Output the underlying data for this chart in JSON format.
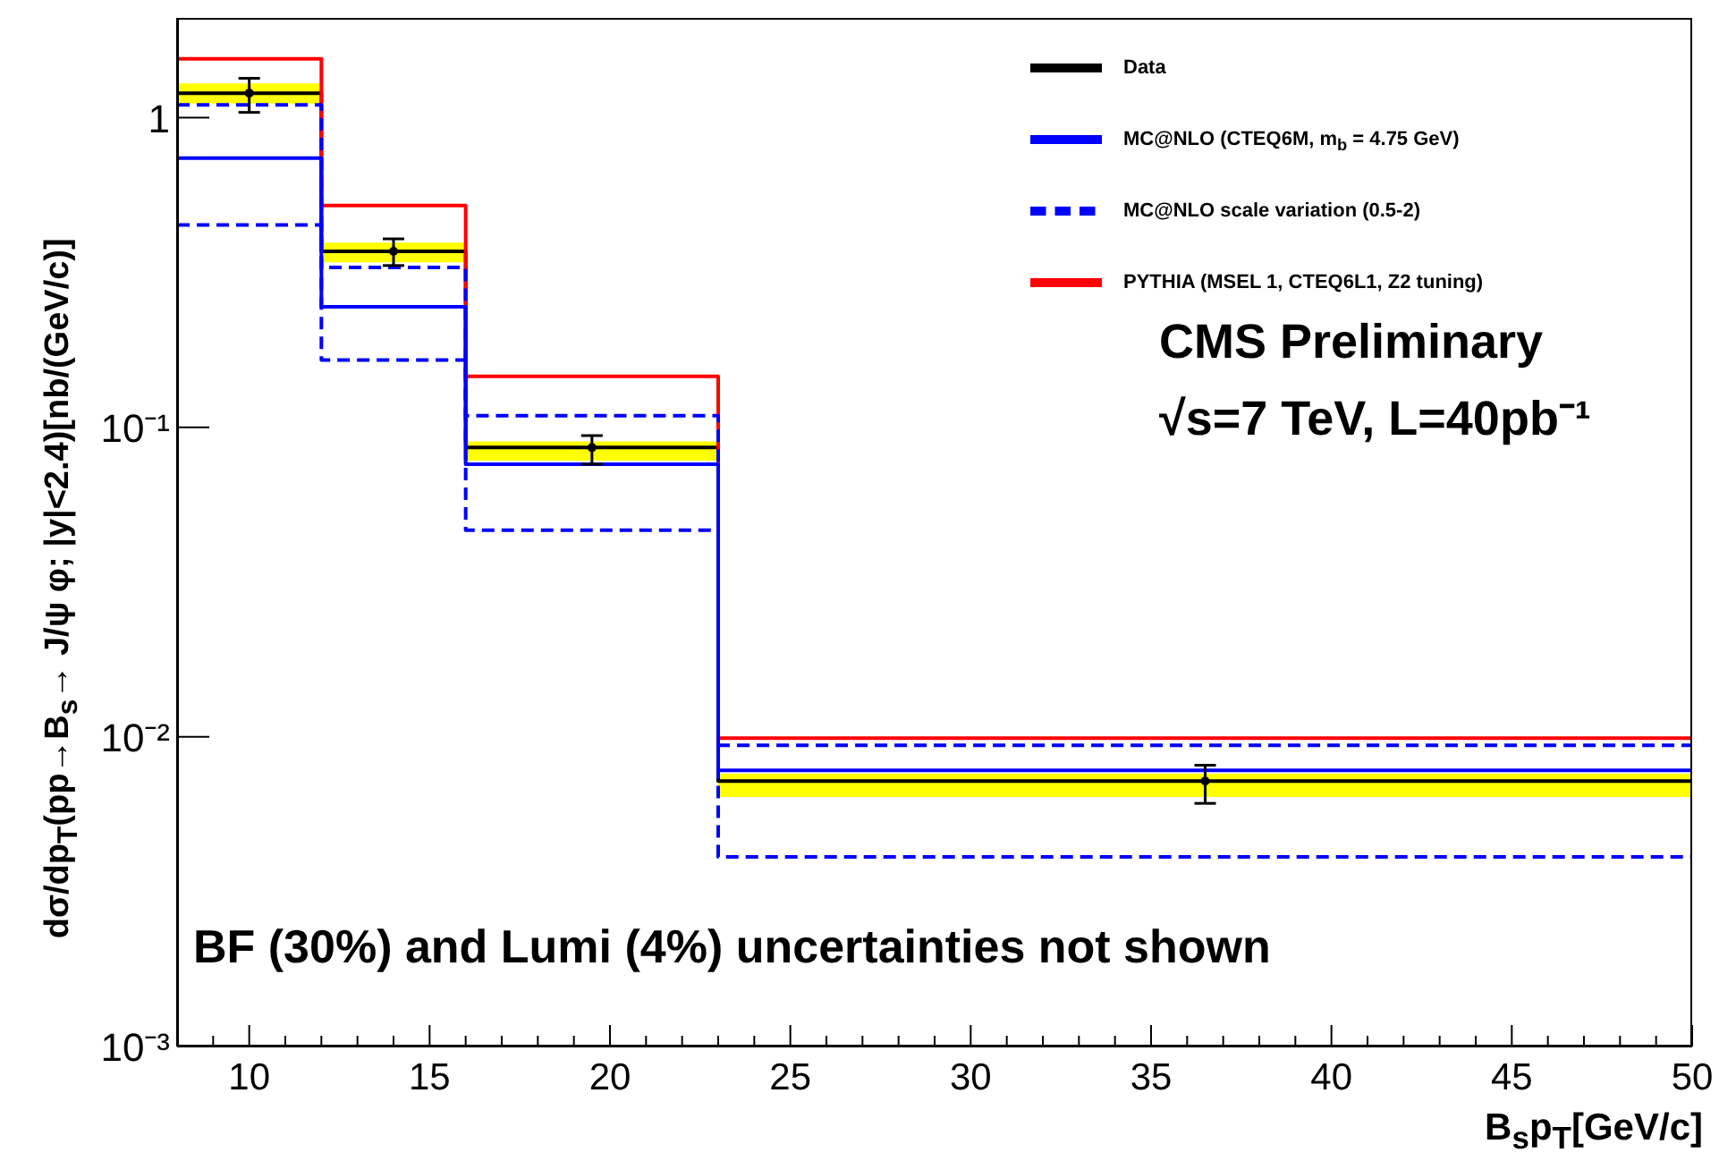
{
  "chart_data": {
    "type": "step",
    "xlabel": "B$_{s}$p$_{T}$[GeV/c]",
    "ylabel": "dσ/dp$_{T}$(pp→B$_{s}$→ J/ψ φ; |y|<2.4)[nb/(GeV/c)]",
    "x": [
      8,
      12,
      16,
      23,
      50
    ],
    "series": [
      {
        "name": "Data",
        "color": "#000000",
        "values": [
          1.2,
          0.37,
          0.086,
          0.0072,
          0.0072
        ],
        "lower": [
          1.11,
          0.341,
          0.078,
          0.0064,
          0.0064
        ],
        "upper": [
          1.29,
          0.395,
          0.09,
          0.0076,
          0.0076
        ]
      },
      {
        "name": "PYTHIA (MSEL 1, CTEQ6L1, Z2 tuning)",
        "color": "#ff0000",
        "values": [
          1.55,
          0.52,
          0.146,
          0.0099,
          0.0099
        ]
      },
      {
        "name": "MC@NLO (CTEQ6M, m$_{b}$ = 4.75 GeV)",
        "color": "#0000ff",
        "values": [
          0.74,
          0.245,
          0.076,
          0.0078,
          0.0078
        ]
      },
      {
        "name": "MC@NLO scale variation (0.5-2)",
        "color": "#0000ff",
        "line_style": "dashed",
        "values": [
          1.1,
          0.328,
          0.109,
          0.0094,
          0.0094
        ]
      },
      {
        "color": "#0000ff",
        "line_style": "dashed",
        "values": [
          0.45,
          0.165,
          0.0465,
          0.0041,
          0.0041
        ]
      },
      {
        "type": "scatter",
        "color": "#000000",
        "marker": "circle",
        "x": [
          10,
          14,
          19.5,
          36.5
        ],
        "values": [
          1.2,
          0.37,
          0.086,
          0.0072
        ],
        "errors": [
          [
            1.04,
            1.34
          ],
          [
            0.333,
            0.406
          ],
          [
            0.076,
            0.094
          ],
          [
            0.0061,
            0.0081
          ]
        ]
      }
    ],
    "log": "y",
    "xlim": [
      8,
      50
    ],
    "ylim": [
      0.001,
      2.1
    ],
    "xticks": [
      {
        "value": 8,
        "label": null
      },
      {
        "value": 9,
        "label": null
      },
      10,
      {
        "value": 11,
        "label": null
      },
      {
        "value": 12,
        "label": null
      },
      {
        "value": 13,
        "label": null
      },
      {
        "value": 14,
        "label": null
      },
      15,
      {
        "value": 16,
        "label": null
      },
      {
        "value": 17,
        "label": null
      },
      {
        "value": 18,
        "label": null
      },
      {
        "value": 19,
        "label": null
      },
      20,
      {
        "value": 21,
        "label": null
      },
      {
        "value": 22,
        "label": null
      },
      {
        "value": 23,
        "label": null
      },
      {
        "value": 24,
        "label": null
      },
      25,
      {
        "value": 26,
        "label": null
      },
      {
        "value": 27,
        "label": null
      },
      {
        "value": 28,
        "label": null
      },
      {
        "value": 29,
        "label": null
      },
      30,
      {
        "value": 31,
        "label": null
      },
      {
        "value": 32,
        "label": null
      },
      {
        "value": 33,
        "label": null
      },
      {
        "value": 34,
        "label": null
      },
      35,
      {
        "value": 36,
        "label": null
      },
      {
        "value": 37,
        "label": null
      },
      {
        "value": 38,
        "label": null
      },
      {
        "value": 39,
        "label": null
      },
      40,
      {
        "value": 41,
        "label": null
      },
      {
        "value": 42,
        "label": null
      },
      {
        "value": 43,
        "label": null
      },
      {
        "value": 44,
        "label": null
      },
      45,
      {
        "value": 46,
        "label": null
      },
      {
        "value": 47,
        "label": null
      },
      {
        "value": 48,
        "label": null
      },
      {
        "value": 49,
        "label": null
      },
      50
    ],
    "yticks": [
      {
        "value": 0.001,
        "label": "10⁻³"
      },
      {
        "value": 0.01,
        "label": "10⁻²"
      },
      {
        "value": 0.1,
        "label": "10⁻¹"
      },
      1
    ],
    "legend": "top right",
    "annotations": [
      "CMS Preliminary",
      "√s=7 TeV, L=40pb⁻¹",
      "BF (30%) and Lumi (4%) uncertainties not shown"
    ]
  }
}
